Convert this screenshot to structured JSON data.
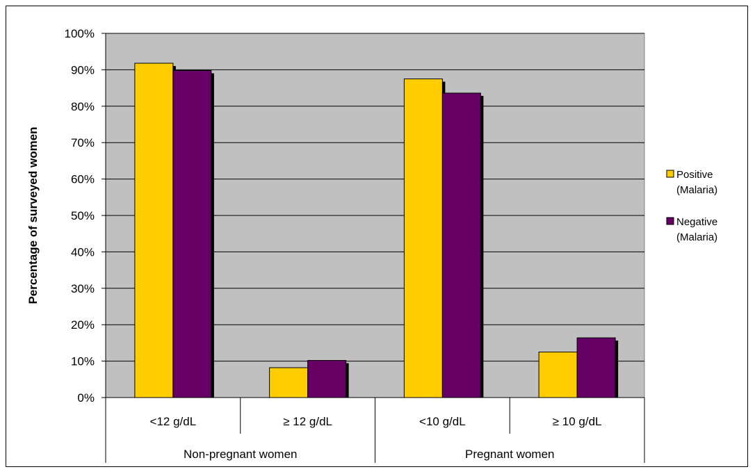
{
  "chart_data": {
    "type": "bar",
    "title": "",
    "xlabel": "",
    "ylabel": "Percentage of surveyed women",
    "ylim": [
      0,
      100
    ],
    "yticks": [
      "0%",
      "10%",
      "20%",
      "30%",
      "40%",
      "50%",
      "60%",
      "70%",
      "80%",
      "90%",
      "100%"
    ],
    "grid": true,
    "legend_position": "right",
    "categories": [
      "<12 g/dL",
      "≥ 12 g/dL",
      "<10 g/dL",
      "≥ 10 g/dL"
    ],
    "groups": [
      {
        "label": "Non-pregnant women",
        "categories": [
          "<12 g/dL",
          "≥ 12 g/dL"
        ]
      },
      {
        "label": "Pregnant women",
        "categories": [
          "<10 g/dL",
          "≥ 10 g/dL"
        ]
      }
    ],
    "series": [
      {
        "name": "Positive (Malaria)",
        "legend_lines": [
          "Positive",
          "(Malaria)"
        ],
        "color": "#ffcc00",
        "values": [
          91.8,
          8.2,
          87.5,
          12.5
        ]
      },
      {
        "name": "Negative (Malaria)",
        "legend_lines": [
          "Negative",
          "(Malaria)"
        ],
        "color": "#660066",
        "values": [
          89.8,
          10.2,
          83.6,
          16.4
        ]
      }
    ],
    "plot_background": "#c0c0c0"
  }
}
